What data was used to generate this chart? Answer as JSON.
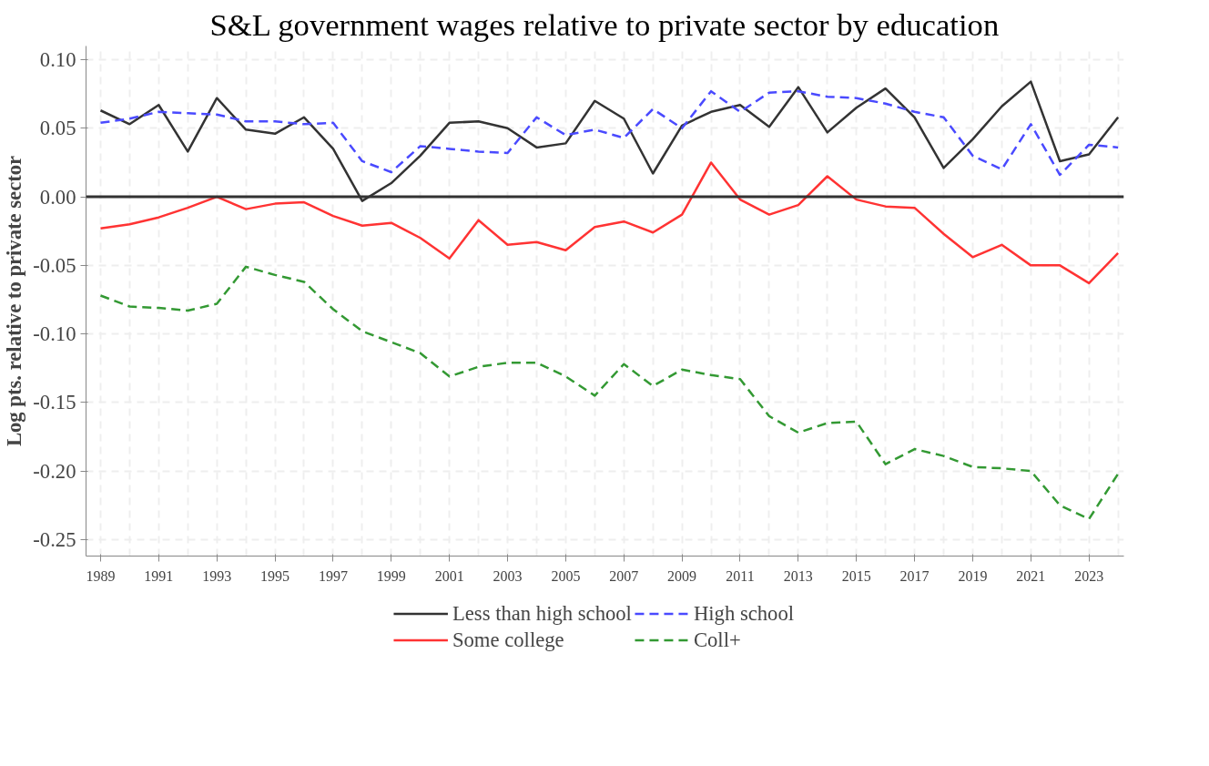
{
  "chart_data": {
    "type": "line",
    "title": "S&L government wages relative to private sector by education",
    "ylabel": "Log pts. relative to private sector",
    "x": [
      1989,
      1990,
      1991,
      1992,
      1993,
      1994,
      1995,
      1996,
      1997,
      1998,
      1999,
      2000,
      2001,
      2002,
      2003,
      2004,
      2005,
      2006,
      2007,
      2008,
      2009,
      2010,
      2011,
      2012,
      2013,
      2014,
      2015,
      2016,
      2017,
      2018,
      2019,
      2020,
      2021,
      2022,
      2023,
      2024
    ],
    "series": [
      {
        "name": "Less than high school",
        "color": "#333333",
        "line_style": "solid",
        "values": [
          0.063,
          0.053,
          0.067,
          0.033,
          0.072,
          0.049,
          0.046,
          0.058,
          0.035,
          -0.003,
          0.01,
          0.03,
          0.054,
          0.055,
          0.05,
          0.036,
          0.039,
          0.07,
          0.057,
          0.017,
          0.052,
          0.062,
          0.067,
          0.051,
          0.08,
          0.047,
          0.065,
          0.079,
          0.058,
          0.021,
          0.042,
          0.066,
          0.084,
          0.026,
          0.031,
          0.058
        ]
      },
      {
        "name": "High school",
        "color": "#4a4aff",
        "line_style": "dashed",
        "values": [
          0.054,
          0.057,
          0.062,
          0.061,
          0.06,
          0.055,
          0.055,
          0.053,
          0.054,
          0.026,
          0.018,
          0.037,
          0.035,
          0.033,
          0.032,
          0.058,
          0.045,
          0.049,
          0.043,
          0.064,
          0.05,
          0.077,
          0.062,
          0.076,
          0.077,
          0.073,
          0.072,
          0.068,
          0.062,
          0.058,
          0.03,
          0.02,
          0.053,
          0.016,
          0.038,
          0.036
        ]
      },
      {
        "name": "Some college",
        "color": "#ff3333",
        "line_style": "solid",
        "values": [
          -0.023,
          -0.02,
          -0.015,
          -0.008,
          0.0,
          -0.009,
          -0.005,
          -0.004,
          -0.014,
          -0.021,
          -0.019,
          -0.03,
          -0.045,
          -0.017,
          -0.035,
          -0.033,
          -0.039,
          -0.022,
          -0.018,
          -0.026,
          -0.013,
          0.025,
          -0.002,
          -0.013,
          -0.006,
          0.015,
          -0.002,
          -0.007,
          -0.008,
          -0.027,
          -0.044,
          -0.035,
          -0.05,
          -0.05,
          -0.063,
          -0.041
        ]
      },
      {
        "name": "Coll+",
        "color": "#339933",
        "line_style": "dashed",
        "values": [
          -0.072,
          -0.08,
          -0.081,
          -0.083,
          -0.078,
          -0.051,
          -0.057,
          -0.062,
          -0.082,
          -0.098,
          -0.106,
          -0.114,
          -0.131,
          -0.124,
          -0.121,
          -0.121,
          -0.131,
          -0.145,
          -0.122,
          -0.138,
          -0.126,
          -0.13,
          -0.133,
          -0.16,
          -0.172,
          -0.165,
          -0.164,
          -0.195,
          -0.184,
          -0.189,
          -0.197,
          -0.198,
          -0.2,
          -0.225,
          -0.235,
          -0.202
        ]
      }
    ],
    "xlim": [
      1988.5,
      2024.2
    ],
    "xticks": [
      1989,
      1991,
      1993,
      1995,
      1997,
      1999,
      2001,
      2003,
      2005,
      2007,
      2009,
      2011,
      2013,
      2015,
      2017,
      2019,
      2021,
      2023
    ],
    "ylim": [
      -0.262,
      0.11
    ],
    "yticks": [
      {
        "value": 0.1,
        "label": "0.10"
      },
      {
        "value": 0.05,
        "label": "0.05"
      },
      {
        "value": 0,
        "label": "0.00"
      },
      {
        "value": -0.05,
        "label": "-0.05"
      },
      {
        "value": -0.1,
        "label": "-0.10"
      },
      {
        "value": -0.15,
        "label": "-0.15"
      },
      {
        "value": -0.2,
        "label": "-0.20"
      },
      {
        "value": -0.25,
        "label": "-0.25"
      }
    ],
    "ref_lines": [
      {
        "axis": "y",
        "value": 0,
        "color": "#333333",
        "line_style": "solid"
      }
    ],
    "grid": true,
    "legend": "bottom",
    "marker": "none"
  }
}
